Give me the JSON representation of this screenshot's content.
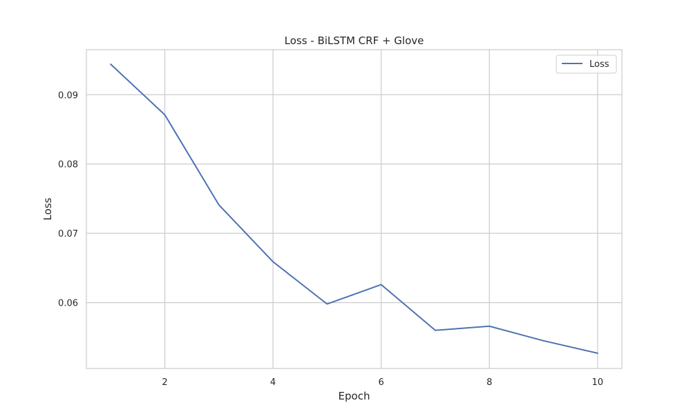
{
  "chart_data": {
    "type": "line",
    "title": "Loss - BiLSTM CRF + Glove",
    "xlabel": "Epoch",
    "ylabel": "Loss",
    "xlim": [
      0.55,
      10.45
    ],
    "ylim": [
      0.0505,
      0.0965
    ],
    "xticks": [
      2,
      4,
      6,
      8,
      10
    ],
    "yticks": [
      0.06,
      0.07,
      0.08,
      0.09
    ],
    "ytick_labels": [
      "0.06",
      "0.07",
      "0.08",
      "0.09"
    ],
    "grid": true,
    "legend_position": "top-right",
    "series": [
      {
        "name": "Loss",
        "color": "#4c72b0",
        "x": [
          1,
          2,
          3,
          4,
          5,
          6,
          7,
          8,
          9,
          10
        ],
        "y": [
          0.0944,
          0.0871,
          0.0741,
          0.0659,
          0.0598,
          0.0626,
          0.056,
          0.0566,
          0.0545,
          0.0527
        ]
      }
    ]
  }
}
